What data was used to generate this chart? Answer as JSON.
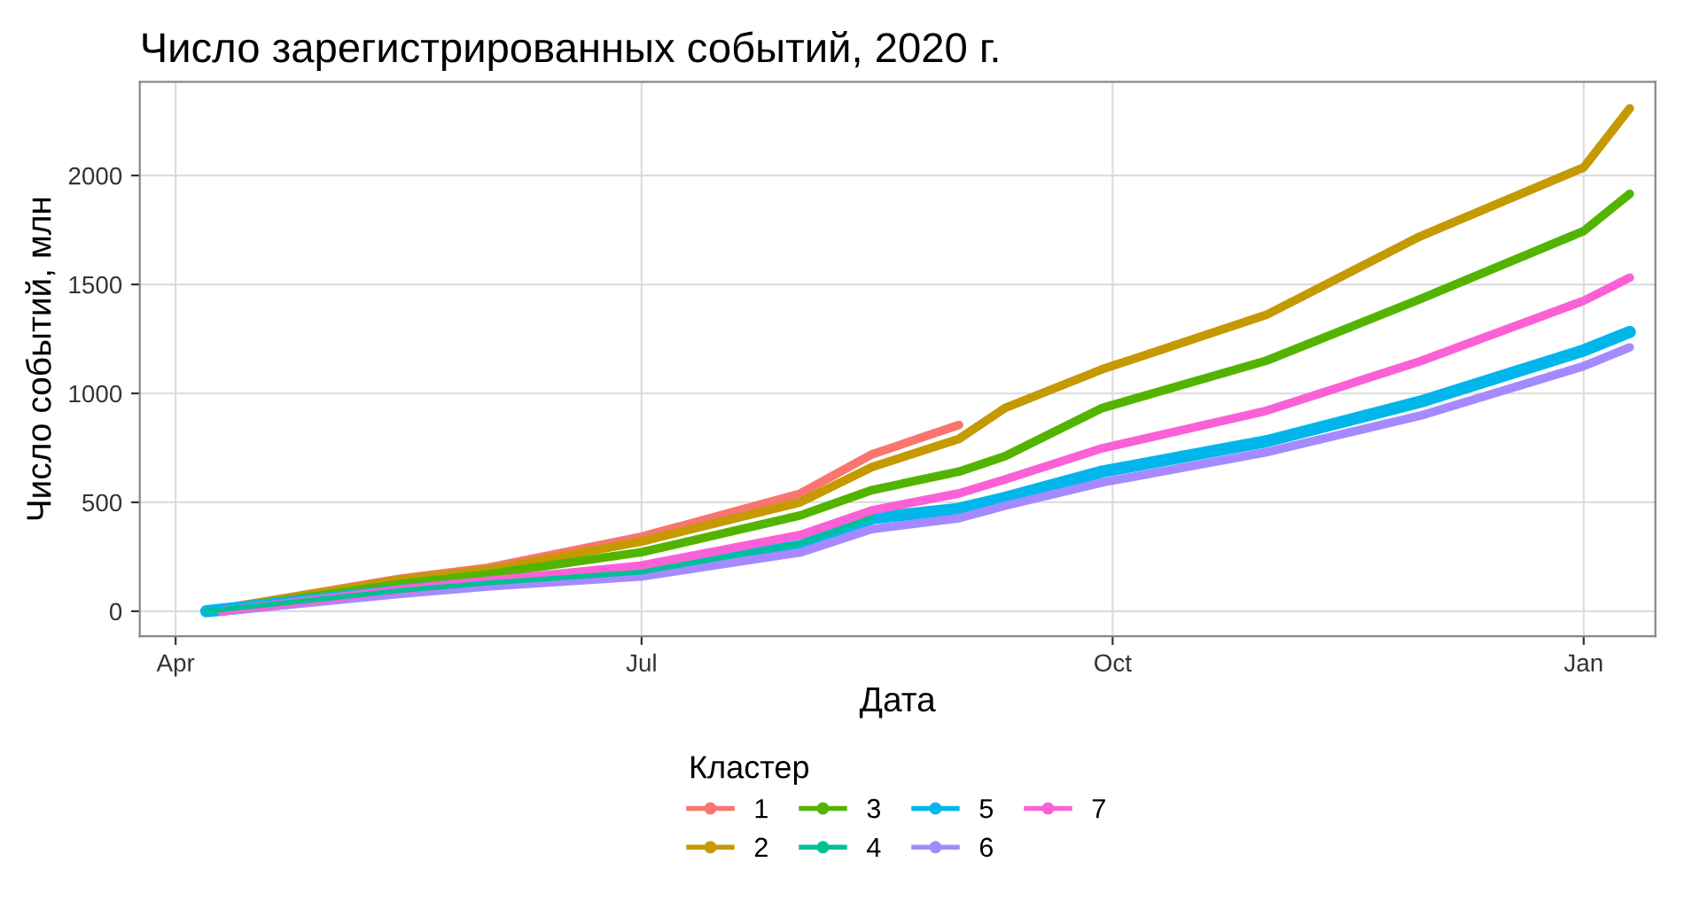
{
  "chart_data": {
    "type": "line",
    "title": "Число зарегистрированных событий, 2020 г.",
    "xlabel": "Дата",
    "ylabel": "Число событий, млн",
    "legend_title": "Кластер",
    "series": [
      {
        "name": "1",
        "color": "#f8766d",
        "x": [
          "2020-04-07",
          "2020-05-15",
          "2020-06-01",
          "2020-07-01",
          "2020-08-01",
          "2020-08-15",
          "2020-09-01"
        ],
        "values": [
          0,
          150,
          200,
          342,
          540,
          720,
          855
        ]
      },
      {
        "name": "2",
        "color": "#c49a00",
        "x": [
          "2020-04-07",
          "2020-05-15",
          "2020-06-01",
          "2020-07-01",
          "2020-08-01",
          "2020-08-15",
          "2020-09-01",
          "2020-09-10",
          "2020-09-29",
          "2020-10-31",
          "2020-11-30",
          "2021-01-01",
          "2021-01-10"
        ],
        "values": [
          0,
          145,
          190,
          320,
          500,
          662,
          791,
          933,
          1111,
          1360,
          1720,
          2037,
          2308
        ]
      },
      {
        "name": "3",
        "color": "#53b400",
        "x": [
          "2020-04-07",
          "2020-05-15",
          "2020-06-01",
          "2020-07-01",
          "2020-08-01",
          "2020-08-15",
          "2020-09-01",
          "2020-09-10",
          "2020-09-29",
          "2020-10-31",
          "2020-11-30",
          "2021-01-01",
          "2021-01-10"
        ],
        "values": [
          0,
          125,
          170,
          271,
          440,
          556,
          641,
          712,
          933,
          1150,
          1432,
          1745,
          1916
        ]
      },
      {
        "name": "4",
        "color": "#00c094",
        "x": [
          "2020-04-07",
          "2020-05-15",
          "2020-06-01",
          "2020-07-01",
          "2020-08-01",
          "2020-08-15"
        ],
        "values": [
          0,
          95,
          130,
          180,
          310,
          430
        ]
      },
      {
        "name": "5",
        "color": "#00b6eb",
        "x": [
          "2020-04-07",
          "2020-05-15",
          "2020-06-01",
          "2020-07-01",
          "2020-08-01",
          "2020-08-15",
          "2020-09-01",
          "2020-09-10",
          "2020-09-29",
          "2020-10-31",
          "2020-11-30",
          "2021-01-01",
          "2021-01-10"
        ],
        "values": [
          0,
          95,
          130,
          180,
          300,
          427,
          470,
          520,
          641,
          780,
          961,
          1197,
          1282
        ]
      },
      {
        "name": "6",
        "color": "#a58aff",
        "x": [
          "2020-04-10",
          "2020-05-15",
          "2020-06-01",
          "2020-07-01",
          "2020-08-01",
          "2020-08-15",
          "2020-09-01",
          "2020-09-10",
          "2020-09-29",
          "2020-10-31",
          "2020-11-30",
          "2021-01-01",
          "2021-01-10"
        ],
        "values": [
          0,
          80,
          114,
          160,
          270,
          377,
          427,
          484,
          591,
          730,
          897,
          1125,
          1211
        ]
      },
      {
        "name": "7",
        "color": "#fb61d7",
        "x": [
          "2020-04-10",
          "2020-05-15",
          "2020-06-01",
          "2020-07-01",
          "2020-08-01",
          "2020-08-15",
          "2020-09-01",
          "2020-09-10",
          "2020-09-29",
          "2020-10-31",
          "2020-11-30",
          "2021-01-01",
          "2021-01-10"
        ],
        "values": [
          0,
          100,
          140,
          210,
          350,
          463,
          541,
          605,
          748,
          920,
          1147,
          1425,
          1531
        ]
      }
    ],
    "xlim": [
      "2020-03-25",
      "2021-01-15"
    ],
    "xticks": [
      {
        "value": "2020-04-01",
        "label": "Apr"
      },
      {
        "value": "2020-07-01",
        "label": "Jul"
      },
      {
        "value": "2020-10-01",
        "label": "Oct"
      },
      {
        "value": "2021-01-01",
        "label": "Jan"
      }
    ],
    "ylim": [
      -115,
      2430
    ],
    "yticks": [
      0,
      500,
      1000,
      1500,
      2000
    ],
    "grid": true,
    "legend": "bottom",
    "line_style": "solid"
  }
}
